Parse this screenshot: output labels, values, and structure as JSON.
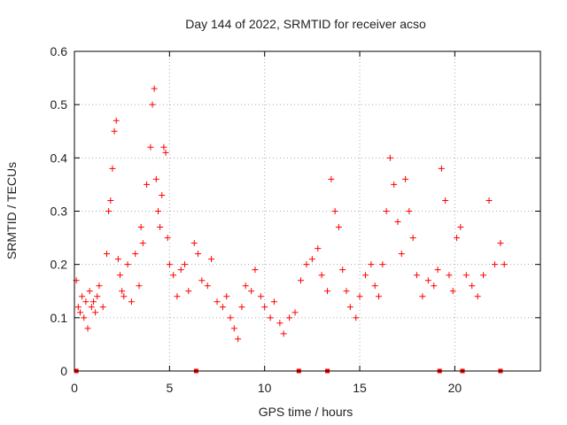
{
  "chart_data": {
    "type": "scatter",
    "title": "Day 144 of 2022, SRMTID for receiver acso",
    "xlabel": "GPS time / hours",
    "ylabel": "SRMTID / TECUs",
    "xlim": [
      0,
      24.5
    ],
    "ylim": [
      0,
      0.6
    ],
    "x_ticks": [
      0,
      5,
      10,
      15,
      20
    ],
    "x_tick_labels": [
      "0",
      "5",
      "10",
      "15",
      "20"
    ],
    "y_ticks": [
      0,
      0.1,
      0.2,
      0.3,
      0.4,
      0.5,
      0.6
    ],
    "y_tick_labels": [
      "0",
      "0.1",
      "0.2",
      "0.3",
      "0.4",
      "0.5",
      "0.6"
    ],
    "grid": true,
    "marker": "+",
    "marker_color": "#ff0000",
    "series": [
      {
        "name": "SRMTID",
        "x": [
          0.1,
          0.2,
          0.3,
          0.4,
          0.5,
          0.6,
          0.7,
          0.8,
          0.9,
          1.0,
          1.1,
          1.2,
          1.3,
          1.5,
          1.7,
          1.8,
          1.9,
          2.0,
          2.1,
          2.2,
          2.3,
          2.4,
          2.5,
          2.6,
          2.8,
          3.0,
          3.2,
          3.4,
          3.5,
          3.6,
          3.8,
          4.0,
          4.1,
          4.2,
          4.3,
          4.4,
          4.5,
          4.6,
          4.7,
          4.8,
          4.9,
          5.0,
          5.2,
          5.4,
          5.6,
          5.8,
          6.0,
          6.3,
          6.5,
          6.7,
          7.0,
          7.2,
          7.5,
          7.8,
          8.0,
          8.2,
          8.4,
          8.6,
          8.8,
          9.0,
          9.3,
          9.5,
          9.8,
          10.0,
          10.3,
          10.5,
          10.8,
          11.0,
          11.3,
          11.6,
          11.9,
          12.2,
          12.5,
          12.8,
          13.0,
          13.3,
          13.5,
          13.7,
          13.9,
          14.1,
          14.3,
          14.5,
          14.8,
          15.0,
          15.3,
          15.6,
          15.8,
          16.0,
          16.2,
          16.4,
          16.6,
          16.8,
          17.0,
          17.2,
          17.4,
          17.6,
          17.8,
          18.0,
          18.3,
          18.6,
          18.9,
          19.1,
          19.3,
          19.5,
          19.7,
          19.9,
          20.1,
          20.3,
          20.6,
          20.9,
          21.2,
          21.5,
          21.8,
          22.1,
          22.4,
          22.6
        ],
        "y": [
          0.17,
          0.12,
          0.11,
          0.14,
          0.1,
          0.13,
          0.08,
          0.15,
          0.12,
          0.13,
          0.11,
          0.14,
          0.16,
          0.12,
          0.22,
          0.3,
          0.32,
          0.38,
          0.45,
          0.47,
          0.21,
          0.18,
          0.15,
          0.14,
          0.2,
          0.13,
          0.22,
          0.16,
          0.27,
          0.24,
          0.35,
          0.42,
          0.5,
          0.53,
          0.36,
          0.3,
          0.27,
          0.33,
          0.42,
          0.41,
          0.25,
          0.2,
          0.18,
          0.14,
          0.19,
          0.2,
          0.15,
          0.24,
          0.22,
          0.17,
          0.16,
          0.21,
          0.13,
          0.12,
          0.14,
          0.1,
          0.08,
          0.06,
          0.12,
          0.16,
          0.15,
          0.19,
          0.14,
          0.12,
          0.1,
          0.13,
          0.09,
          0.07,
          0.1,
          0.11,
          0.17,
          0.2,
          0.21,
          0.23,
          0.18,
          0.15,
          0.36,
          0.3,
          0.27,
          0.19,
          0.15,
          0.12,
          0.1,
          0.14,
          0.18,
          0.2,
          0.16,
          0.14,
          0.2,
          0.3,
          0.4,
          0.35,
          0.28,
          0.22,
          0.36,
          0.3,
          0.25,
          0.18,
          0.14,
          0.17,
          0.16,
          0.19,
          0.38,
          0.32,
          0.18,
          0.15,
          0.25,
          0.27,
          0.18,
          0.16,
          0.14,
          0.18,
          0.32,
          0.2,
          0.24,
          0.2
        ]
      }
    ],
    "zero_markers_x": [
      0.1,
      6.4,
      11.8,
      13.3,
      19.2,
      20.4,
      22.4
    ]
  }
}
